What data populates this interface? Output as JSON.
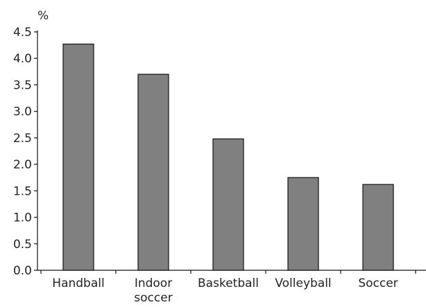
{
  "chart_data": {
    "type": "bar",
    "unit_label": "%",
    "categories": [
      [
        "Handball"
      ],
      [
        "Indoor",
        "soccer"
      ],
      [
        "Basketball"
      ],
      [
        "Volleyball"
      ],
      [
        "Soccer"
      ]
    ],
    "values": [
      4.27,
      3.7,
      2.48,
      1.75,
      1.62
    ],
    "yticks": [
      "0.0",
      "0.5",
      "1.0",
      "1.5",
      "2.0",
      "2.5",
      "3.0",
      "3.5",
      "4.0",
      "4.5"
    ],
    "ylim": [
      0,
      4.5
    ],
    "grid": false,
    "bar_color": "#808080",
    "bar_stroke": "#111111",
    "axis_color": "#111111",
    "text_color": "#222222"
  }
}
